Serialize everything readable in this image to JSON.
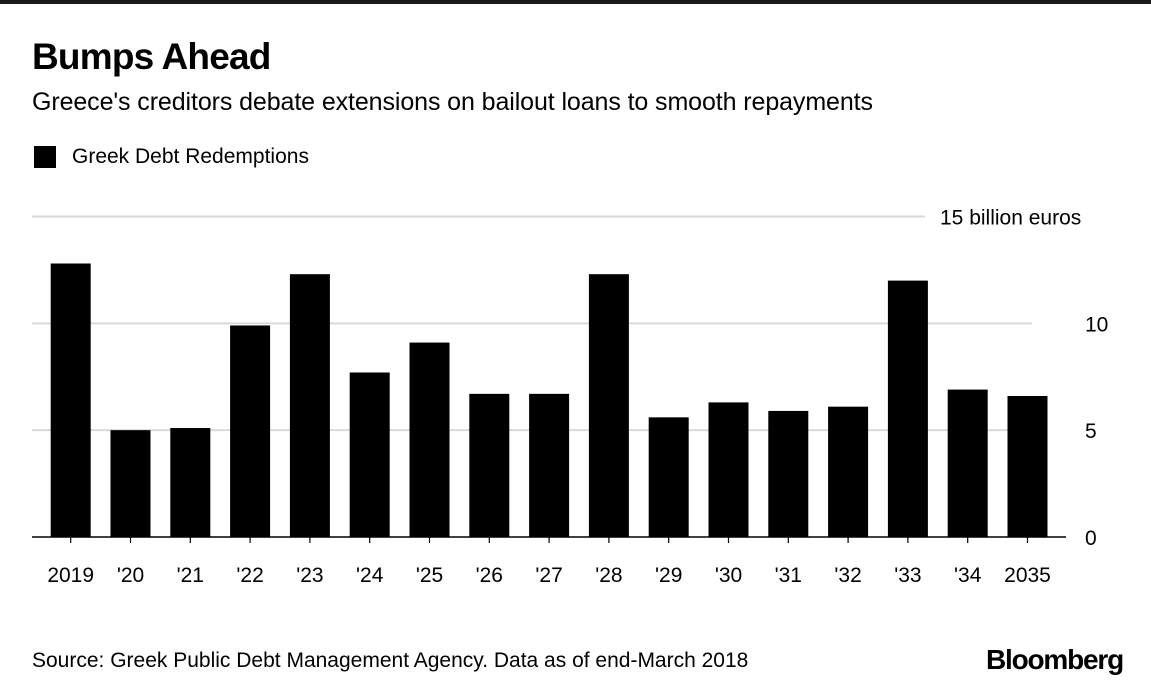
{
  "header": {
    "title": "Bumps Ahead",
    "subtitle": "Greece's creditors debate extensions on bailout loans to smooth repayments"
  },
  "legend": {
    "label": "Greek Debt Redemptions",
    "color": "#000000"
  },
  "footer": {
    "source": "Source: Greek Public Debt Management Agency. Data as of end-March 2018",
    "brand": "Bloomberg"
  },
  "chart_data": {
    "type": "bar",
    "title": "Bumps Ahead",
    "subtitle": "Greece's creditors debate extensions on bailout loans to smooth repayments",
    "xlabel": "",
    "ylabel": "billion euros",
    "categories": [
      "2019",
      "'20",
      "'21",
      "'22",
      "'23",
      "'24",
      "'25",
      "'26",
      "'27",
      "'28",
      "'29",
      "'30",
      "'31",
      "'32",
      "'33",
      "'34",
      "2035"
    ],
    "series": [
      {
        "name": "Greek Debt Redemptions",
        "color": "#000000",
        "values": [
          12.8,
          5.0,
          5.1,
          9.9,
          12.3,
          7.7,
          9.1,
          6.7,
          6.7,
          12.3,
          5.6,
          6.3,
          5.9,
          6.1,
          12.0,
          6.9,
          6.6
        ]
      }
    ],
    "ylim": [
      0,
      15
    ],
    "yticks": [
      0,
      5,
      10,
      15
    ],
    "ytick_labels": [
      "0",
      "5",
      "10",
      "15 billion euros"
    ],
    "y_axis_side": "right",
    "grid": true,
    "grid_color": "#d9d9d9",
    "legend_position": "top-left"
  }
}
